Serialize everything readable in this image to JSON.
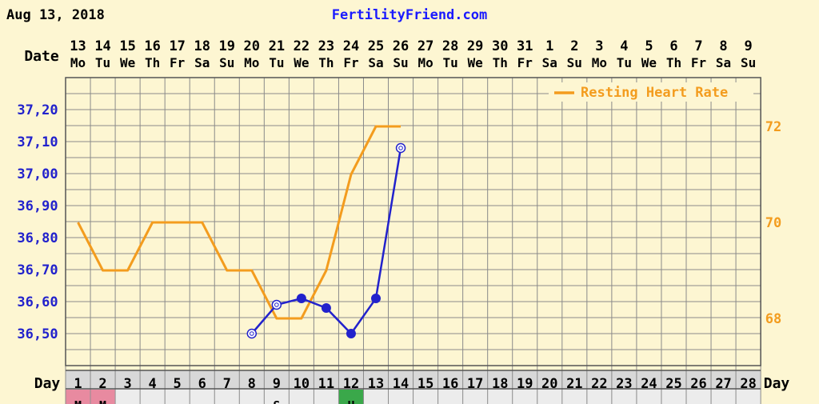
{
  "header": {
    "date": "Aug 13, 2018",
    "site": "FertilityFriend.com"
  },
  "labels": {
    "date": "Date",
    "day": "Day"
  },
  "colors": {
    "background": "#fdf6d2",
    "grid": "#8a8a8a",
    "temperature": "#2222cc",
    "heart_rate": "#f39c1e",
    "menstruation": "#e88aa0",
    "marker_green": "#3aa84a",
    "text": "#000000"
  },
  "chart_data": {
    "type": "line",
    "dates": [
      {
        "num": "13",
        "dow": "Mo"
      },
      {
        "num": "14",
        "dow": "Tu"
      },
      {
        "num": "15",
        "dow": "We"
      },
      {
        "num": "16",
        "dow": "Th"
      },
      {
        "num": "17",
        "dow": "Fr"
      },
      {
        "num": "18",
        "dow": "Sa"
      },
      {
        "num": "19",
        "dow": "Su"
      },
      {
        "num": "20",
        "dow": "Mo"
      },
      {
        "num": "21",
        "dow": "Tu"
      },
      {
        "num": "22",
        "dow": "We"
      },
      {
        "num": "23",
        "dow": "Th"
      },
      {
        "num": "24",
        "dow": "Fr"
      },
      {
        "num": "25",
        "dow": "Sa"
      },
      {
        "num": "26",
        "dow": "Su"
      },
      {
        "num": "27",
        "dow": "Mo"
      },
      {
        "num": "28",
        "dow": "Tu"
      },
      {
        "num": "29",
        "dow": "We"
      },
      {
        "num": "30",
        "dow": "Th"
      },
      {
        "num": "31",
        "dow": "Fr"
      },
      {
        "num": "1",
        "dow": "Sa"
      },
      {
        "num": "2",
        "dow": "Su"
      },
      {
        "num": "3",
        "dow": "Mo"
      },
      {
        "num": "4",
        "dow": "Tu"
      },
      {
        "num": "5",
        "dow": "We"
      },
      {
        "num": "6",
        "dow": "Th"
      },
      {
        "num": "7",
        "dow": "Fr"
      },
      {
        "num": "8",
        "dow": "Sa"
      },
      {
        "num": "9",
        "dow": "Su"
      }
    ],
    "days": [
      1,
      2,
      3,
      4,
      5,
      6,
      7,
      8,
      9,
      10,
      11,
      12,
      13,
      14,
      15,
      16,
      17,
      18,
      19,
      20,
      21,
      22,
      23,
      24,
      25,
      26,
      27,
      28
    ],
    "y_left": {
      "ticks": [
        "37,20",
        "37,10",
        "37,00",
        "36,90",
        "36,80",
        "36,70",
        "36,60",
        "36,50"
      ],
      "range": [
        36.4,
        37.3
      ]
    },
    "y_right": {
      "ticks": [
        "72",
        "70",
        "68"
      ],
      "range": [
        67.35,
        73.35
      ]
    },
    "series": [
      {
        "name": "Resting Heart Rate",
        "axis": "right",
        "points": [
          {
            "day": 1,
            "value": 70
          },
          {
            "day": 2,
            "value": 69
          },
          {
            "day": 3,
            "value": 69
          },
          {
            "day": 4,
            "value": 70
          },
          {
            "day": 5,
            "value": 70
          },
          {
            "day": 6,
            "value": 70
          },
          {
            "day": 7,
            "value": 69
          },
          {
            "day": 8,
            "value": 69
          },
          {
            "day": 9,
            "value": 68
          },
          {
            "day": 10,
            "value": 68
          },
          {
            "day": 11,
            "value": 69
          },
          {
            "day": 12,
            "value": 71
          },
          {
            "day": 13,
            "value": 72
          },
          {
            "day": 14,
            "value": 72
          }
        ]
      },
      {
        "axis": "left",
        "points": [
          {
            "day": 8,
            "value": 36.5,
            "open": true
          },
          {
            "day": 9,
            "value": 36.59,
            "open": true
          },
          {
            "day": 10,
            "value": 36.61,
            "open": false
          },
          {
            "day": 11,
            "value": 36.58,
            "open": false
          },
          {
            "day": 12,
            "value": 36.5,
            "open": false
          },
          {
            "day": 13,
            "value": 36.61,
            "open": false
          },
          {
            "day": 14,
            "value": 37.08,
            "open": true
          }
        ]
      }
    ],
    "legend": {
      "position": "top-right"
    },
    "grid": true,
    "bottom_row": {
      "cells": [
        {
          "day": 1,
          "text": "M",
          "color": "#e88aa0"
        },
        {
          "day": 2,
          "text": "M",
          "color": "#e88aa0"
        },
        {
          "day": 3,
          "text": "··",
          "color": ""
        },
        {
          "day": 4,
          "text": "··",
          "color": ""
        },
        {
          "day": 5,
          "text": "··",
          "color": ""
        },
        {
          "day": 9,
          "text": "S",
          "color": ""
        },
        {
          "day": 12,
          "text": "H",
          "color": "#3aa84a"
        }
      ]
    }
  }
}
